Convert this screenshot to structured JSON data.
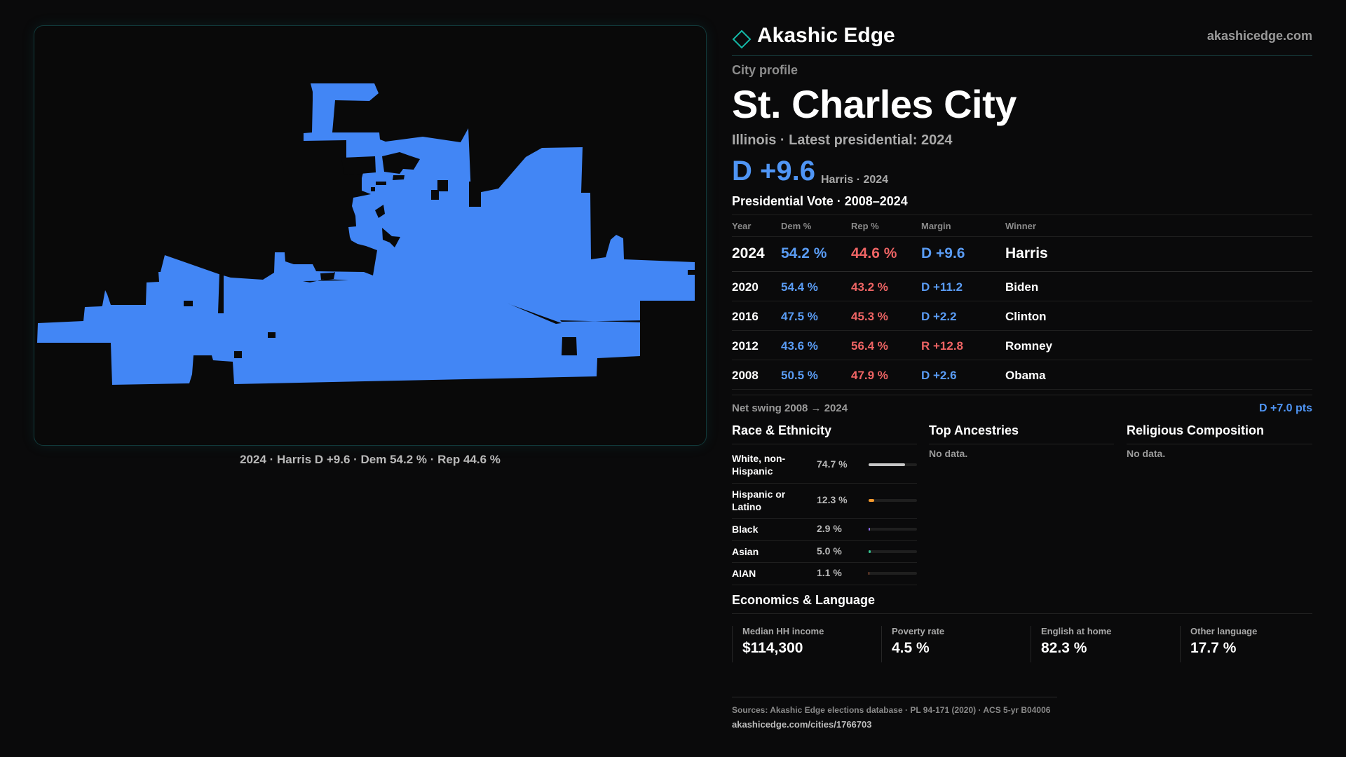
{
  "brand": {
    "name": "Akashic Edge",
    "url": "akashicedge.com",
    "accent": "#14b8a6"
  },
  "map": {
    "fill_color": "#4286f5",
    "caption": "2024 · Harris D +9.6 · Dem 54.2 % · Rep 44.6 %"
  },
  "profile": {
    "kind": "City profile",
    "city": "St. Charles City",
    "subtitle": "Illinois · Latest presidential: 2024",
    "headline_margin": "D +9.6",
    "headline_note": "Harris · 2024"
  },
  "vote_table": {
    "title": "Presidential Vote · 2008–2024",
    "columns": [
      "Year",
      "Dem %",
      "Rep %",
      "Margin",
      "Winner"
    ],
    "rows": [
      {
        "year": "2024",
        "dem": "54.2 %",
        "rep": "44.6 %",
        "margin": "D +9.6",
        "winner": "Harris",
        "party": "D"
      },
      {
        "year": "2020",
        "dem": "54.4 %",
        "rep": "43.2 %",
        "margin": "D +11.2",
        "winner": "Biden",
        "party": "D"
      },
      {
        "year": "2016",
        "dem": "47.5 %",
        "rep": "45.3 %",
        "margin": "D +2.2",
        "winner": "Clinton",
        "party": "D"
      },
      {
        "year": "2012",
        "dem": "43.6 %",
        "rep": "56.4 %",
        "margin": "R +12.8",
        "winner": "Romney",
        "party": "R"
      },
      {
        "year": "2008",
        "dem": "50.5 %",
        "rep": "47.9 %",
        "margin": "D +2.6",
        "winner": "Obama",
        "party": "D"
      }
    ],
    "net_swing_label": "Net swing 2008 → 2024",
    "net_swing_value": "D +7.0 pts"
  },
  "race": {
    "title": "Race & Ethnicity",
    "items": [
      {
        "label": "White, non-Hispanic",
        "value": "74.7 %",
        "pct": 74.7,
        "color": "#c7c7c7"
      },
      {
        "label": "Hispanic or Latino",
        "value": "12.3 %",
        "pct": 12.3,
        "color": "#f29a2e"
      },
      {
        "label": "Black",
        "value": "2.9 %",
        "pct": 2.9,
        "color": "#8e6cf2"
      },
      {
        "label": "Asian",
        "value": "5.0 %",
        "pct": 5.0,
        "color": "#34c38f"
      },
      {
        "label": "AIAN",
        "value": "1.1 %",
        "pct": 1.1,
        "color": "#e2784a"
      }
    ]
  },
  "ancestries": {
    "title": "Top Ancestries",
    "empty": "No data."
  },
  "religion": {
    "title": "Religious Composition",
    "empty": "No data."
  },
  "economics": {
    "title": "Economics & Language",
    "stats": [
      {
        "label": "Median HH income",
        "value": "$114,300"
      },
      {
        "label": "Poverty rate",
        "value": "4.5 %"
      },
      {
        "label": "English at home",
        "value": "82.3 %"
      },
      {
        "label": "Other language",
        "value": "17.7 %"
      }
    ]
  },
  "footer": {
    "sources": "Sources: Akashic Edge elections database · PL 94-171 (2020) · ACS 5-yr B04006",
    "url": "akashicedge.com/cities/1766703"
  }
}
